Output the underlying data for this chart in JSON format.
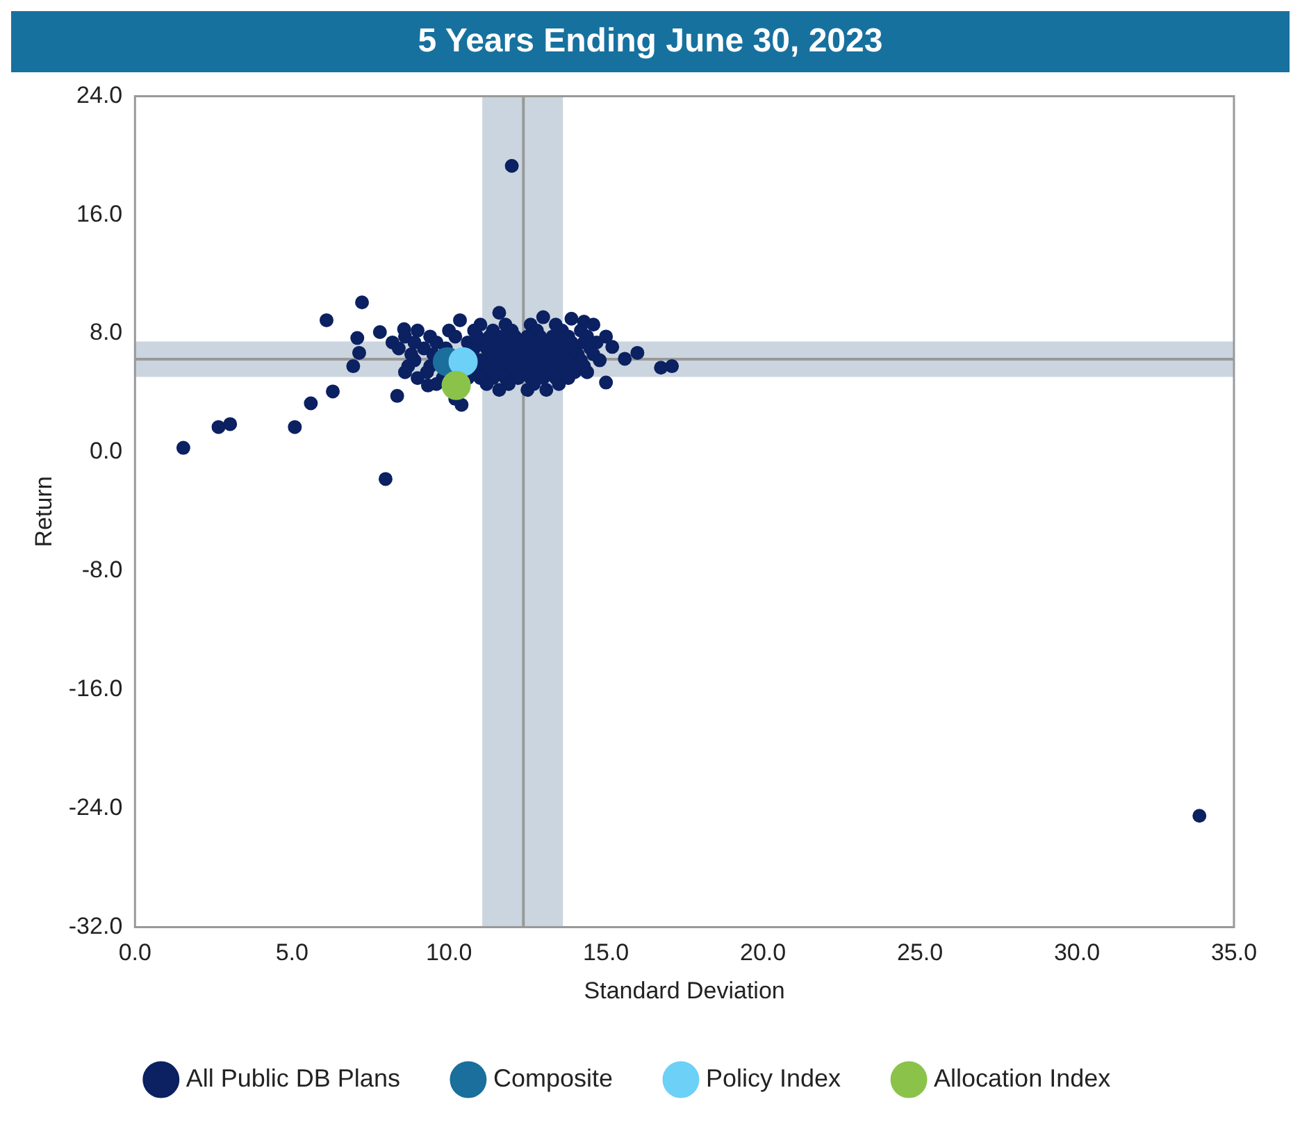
{
  "chart_data": {
    "type": "scatter",
    "title": "5 Years Ending June 30, 2023",
    "xlabel": "Standard Deviation",
    "ylabel": "Return",
    "xlim": [
      0,
      35
    ],
    "xticks": [
      {
        "value": 0,
        "label": "0.0"
      },
      {
        "value": 5,
        "label": "5.0"
      },
      {
        "value": 10,
        "label": "10.0"
      },
      {
        "value": 15,
        "label": "15.0"
      },
      {
        "value": 20,
        "label": "20.0"
      },
      {
        "value": 25,
        "label": "25.0"
      },
      {
        "value": 30,
        "label": "30.0"
      },
      {
        "value": 35,
        "label": "35.0"
      }
    ],
    "ylim": [
      -32,
      24
    ],
    "yticks": [
      {
        "value": -32,
        "label": "-32.0"
      },
      {
        "value": -24,
        "label": "-24.0"
      },
      {
        "value": -16,
        "label": "-16.0"
      },
      {
        "value": -8,
        "label": "-8.0"
      },
      {
        "value": 0,
        "label": "0.0"
      },
      {
        "value": 8,
        "label": "8.0"
      },
      {
        "value": 16,
        "label": "16.0"
      },
      {
        "value": 24,
        "label": "24.0"
      }
    ],
    "grid": false,
    "legend": "bottom",
    "marker": "circle",
    "bands": [
      {
        "axis": "x",
        "from": 11.06,
        "to": 13.63,
        "color": "#cbd5df"
      },
      {
        "axis": "y",
        "from": 5.08,
        "to": 7.47,
        "color": "#cbd5df"
      }
    ],
    "ref_lines": [
      {
        "axis": "x",
        "value": 12.37,
        "color": "#999999"
      },
      {
        "axis": "y",
        "value": 6.27,
        "color": "#999999"
      }
    ],
    "series": [
      {
        "name": "All Public DB Plans",
        "color": "#0b2161",
        "x": [
          12.0,
          33.9,
          1.54,
          2.66,
          3.03,
          5.09,
          5.6,
          6.3,
          7.98,
          6.1,
          7.23,
          8.35,
          6.95,
          7.08,
          7.14,
          17.1,
          16.75,
          16.0,
          15.6,
          15.0,
          15.0,
          15.2,
          11.6,
          10.35,
          13.0,
          13.9,
          14.3,
          8.57,
          7.8,
          10.4,
          10.2,
          9.33,
          11.6,
          13.1,
          12.5,
          11.0,
          11.8,
          12.6,
          13.4,
          14.6,
          9.0,
          10.0,
          10.8,
          11.4,
          12.0,
          12.8,
          13.6,
          14.2,
          8.6,
          9.4,
          10.2,
          10.9,
          11.3,
          11.7,
          12.1,
          12.5,
          12.9,
          13.3,
          13.8,
          14.4,
          8.2,
          8.9,
          9.6,
          10.6,
          11.1,
          11.5,
          11.9,
          12.3,
          12.7,
          13.1,
          13.5,
          13.9,
          14.3,
          14.7,
          8.4,
          9.2,
          9.9,
          10.8,
          11.2,
          11.6,
          12.0,
          12.4,
          12.8,
          13.2,
          13.6,
          14.0,
          14.5,
          8.8,
          9.5,
          11.3,
          11.7,
          12.1,
          12.5,
          12.9,
          13.3,
          13.7,
          14.1,
          14.6,
          8.9,
          11.0,
          11.4,
          11.8,
          12.2,
          12.6,
          13.0,
          13.4,
          13.8,
          14.2,
          14.8,
          8.7,
          9.4,
          11.1,
          11.5,
          11.9,
          12.3,
          12.7,
          13.1,
          13.5,
          13.9,
          14.3,
          8.6,
          9.3,
          10.8,
          11.2,
          11.6,
          12.0,
          12.4,
          12.8,
          13.2,
          13.6,
          14.0,
          14.4,
          9.0,
          9.8,
          10.6,
          11.0,
          11.4,
          11.8,
          12.2,
          12.6,
          13.0,
          13.4,
          13.8,
          9.6,
          11.2,
          11.9,
          12.7,
          13.5
        ],
        "values": [
          19.3,
          -24.5,
          0.3,
          1.7,
          1.9,
          1.7,
          3.3,
          4.1,
          -1.8,
          8.9,
          10.1,
          3.8,
          5.8,
          7.7,
          6.7,
          5.8,
          5.7,
          6.7,
          6.3,
          7.8,
          4.7,
          7.1,
          9.4,
          8.9,
          9.1,
          9.0,
          8.8,
          8.3,
          8.1,
          3.2,
          3.6,
          4.5,
          4.2,
          4.2,
          4.2,
          8.6,
          8.6,
          8.6,
          8.6,
          8.6,
          8.2,
          8.2,
          8.2,
          8.2,
          8.2,
          8.2,
          8.2,
          8.2,
          7.8,
          7.8,
          7.8,
          7.8,
          7.8,
          7.8,
          7.8,
          7.8,
          7.8,
          7.8,
          7.8,
          7.8,
          7.4,
          7.4,
          7.4,
          7.4,
          7.4,
          7.4,
          7.4,
          7.4,
          7.4,
          7.4,
          7.4,
          7.4,
          7.4,
          7.4,
          7.0,
          7.0,
          7.0,
          7.0,
          7.0,
          7.0,
          7.0,
          7.0,
          7.0,
          7.0,
          7.0,
          7.0,
          7.0,
          6.6,
          6.6,
          6.6,
          6.6,
          6.6,
          6.6,
          6.6,
          6.6,
          6.6,
          6.6,
          6.6,
          6.2,
          6.2,
          6.2,
          6.2,
          6.2,
          6.2,
          6.2,
          6.2,
          6.2,
          6.2,
          6.2,
          5.8,
          5.8,
          5.8,
          5.8,
          5.8,
          5.8,
          5.8,
          5.8,
          5.8,
          5.8,
          5.8,
          5.4,
          5.4,
          5.4,
          5.4,
          5.4,
          5.4,
          5.4,
          5.4,
          5.4,
          5.4,
          5.4,
          5.4,
          5.0,
          5.0,
          5.0,
          5.0,
          5.0,
          5.0,
          5.0,
          5.0,
          5.0,
          5.0,
          5.0,
          4.6,
          4.6,
          4.6,
          4.6,
          4.6
        ]
      },
      {
        "name": "Composite",
        "color": "#1a6f9c",
        "x": [
          9.95
        ],
        "values": [
          6.1
        ]
      },
      {
        "name": "Policy Index",
        "color": "#6dd0f7",
        "x": [
          10.45
        ],
        "values": [
          6.1
        ]
      },
      {
        "name": "Allocation Index",
        "color": "#8bc34a",
        "x": [
          10.23
        ],
        "values": [
          4.5
        ]
      }
    ]
  }
}
